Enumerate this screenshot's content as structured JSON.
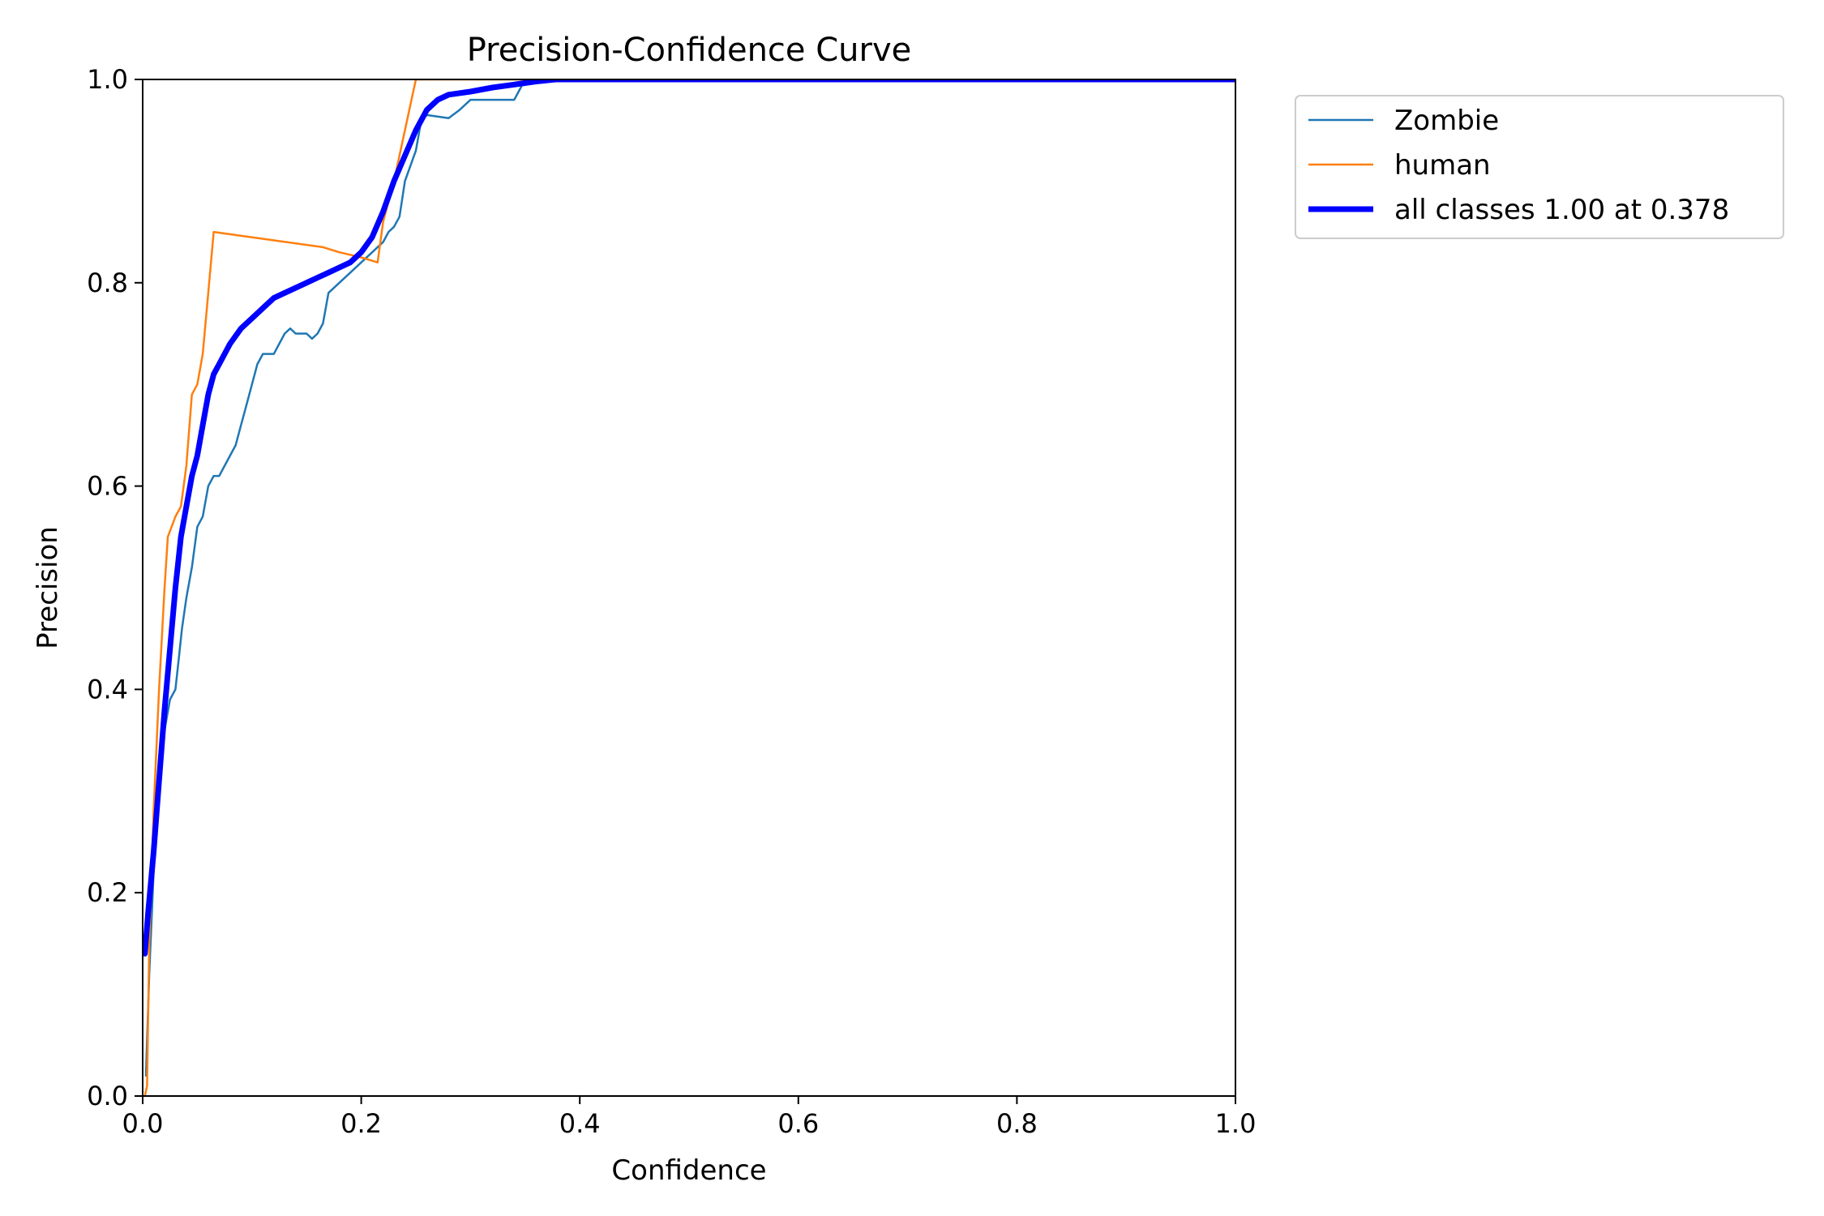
{
  "chart_data": {
    "type": "line",
    "title": "Precision-Confidence Curve",
    "xlabel": "Confidence",
    "ylabel": "Precision",
    "xlim": [
      0,
      1
    ],
    "ylim": [
      0,
      1
    ],
    "xticks": [
      "0.0",
      "0.2",
      "0.4",
      "0.6",
      "0.8",
      "1.0"
    ],
    "yticks": [
      "0.0",
      "0.2",
      "0.4",
      "0.6",
      "0.8",
      "1.0"
    ],
    "grid": false,
    "legend_position": "outside-top-right",
    "series": [
      {
        "name": "Zombie",
        "color": "#1f77b4",
        "line_width": "thin",
        "points": [
          [
            0.003,
            0.02
          ],
          [
            0.006,
            0.12
          ],
          [
            0.01,
            0.22
          ],
          [
            0.015,
            0.3
          ],
          [
            0.02,
            0.36
          ],
          [
            0.025,
            0.39
          ],
          [
            0.03,
            0.4
          ],
          [
            0.033,
            0.43
          ],
          [
            0.036,
            0.46
          ],
          [
            0.04,
            0.49
          ],
          [
            0.045,
            0.52
          ],
          [
            0.05,
            0.56
          ],
          [
            0.055,
            0.57
          ],
          [
            0.06,
            0.6
          ],
          [
            0.065,
            0.61
          ],
          [
            0.07,
            0.61
          ],
          [
            0.075,
            0.62
          ],
          [
            0.08,
            0.63
          ],
          [
            0.085,
            0.64
          ],
          [
            0.09,
            0.66
          ],
          [
            0.095,
            0.68
          ],
          [
            0.1,
            0.7
          ],
          [
            0.105,
            0.72
          ],
          [
            0.11,
            0.73
          ],
          [
            0.115,
            0.73
          ],
          [
            0.12,
            0.73
          ],
          [
            0.125,
            0.74
          ],
          [
            0.13,
            0.75
          ],
          [
            0.135,
            0.755
          ],
          [
            0.14,
            0.75
          ],
          [
            0.15,
            0.75
          ],
          [
            0.155,
            0.745
          ],
          [
            0.16,
            0.75
          ],
          [
            0.165,
            0.76
          ],
          [
            0.17,
            0.79
          ],
          [
            0.18,
            0.8
          ],
          [
            0.19,
            0.81
          ],
          [
            0.2,
            0.82
          ],
          [
            0.21,
            0.83
          ],
          [
            0.22,
            0.84
          ],
          [
            0.225,
            0.85
          ],
          [
            0.23,
            0.855
          ],
          [
            0.235,
            0.865
          ],
          [
            0.24,
            0.9
          ],
          [
            0.25,
            0.93
          ],
          [
            0.255,
            0.96
          ],
          [
            0.26,
            0.965
          ],
          [
            0.28,
            0.962
          ],
          [
            0.29,
            0.97
          ],
          [
            0.3,
            0.98
          ],
          [
            0.32,
            0.98
          ],
          [
            0.34,
            0.98
          ],
          [
            0.345,
            0.99
          ],
          [
            0.35,
            1.0
          ],
          [
            0.4,
            1.0
          ],
          [
            1.0,
            1.0
          ]
        ]
      },
      {
        "name": "human",
        "color": "#ff7f0e",
        "line_width": "thin",
        "points": [
          [
            0.002,
            0.0
          ],
          [
            0.004,
            0.01
          ],
          [
            0.006,
            0.15
          ],
          [
            0.01,
            0.28
          ],
          [
            0.015,
            0.4
          ],
          [
            0.02,
            0.5
          ],
          [
            0.023,
            0.55
          ],
          [
            0.03,
            0.57
          ],
          [
            0.035,
            0.58
          ],
          [
            0.04,
            0.62
          ],
          [
            0.045,
            0.69
          ],
          [
            0.05,
            0.7
          ],
          [
            0.055,
            0.73
          ],
          [
            0.06,
            0.79
          ],
          [
            0.065,
            0.85
          ],
          [
            0.165,
            0.835
          ],
          [
            0.18,
            0.83
          ],
          [
            0.2,
            0.825
          ],
          [
            0.215,
            0.82
          ],
          [
            0.22,
            0.86
          ],
          [
            0.23,
            0.9
          ],
          [
            0.24,
            0.95
          ],
          [
            0.25,
            1.0
          ],
          [
            1.0,
            1.0
          ]
        ]
      },
      {
        "name": "all classes 1.00 at 0.378",
        "color": "#0000ff",
        "line_width": "thick",
        "points": [
          [
            0.002,
            0.14
          ],
          [
            0.005,
            0.18
          ],
          [
            0.01,
            0.24
          ],
          [
            0.015,
            0.31
          ],
          [
            0.02,
            0.38
          ],
          [
            0.025,
            0.44
          ],
          [
            0.03,
            0.5
          ],
          [
            0.035,
            0.55
          ],
          [
            0.04,
            0.58
          ],
          [
            0.045,
            0.61
          ],
          [
            0.05,
            0.63
          ],
          [
            0.055,
            0.66
          ],
          [
            0.06,
            0.69
          ],
          [
            0.065,
            0.71
          ],
          [
            0.07,
            0.72
          ],
          [
            0.08,
            0.74
          ],
          [
            0.09,
            0.755
          ],
          [
            0.1,
            0.765
          ],
          [
            0.11,
            0.775
          ],
          [
            0.12,
            0.785
          ],
          [
            0.13,
            0.79
          ],
          [
            0.14,
            0.795
          ],
          [
            0.15,
            0.8
          ],
          [
            0.16,
            0.805
          ],
          [
            0.17,
            0.81
          ],
          [
            0.18,
            0.815
          ],
          [
            0.19,
            0.82
          ],
          [
            0.2,
            0.83
          ],
          [
            0.21,
            0.845
          ],
          [
            0.22,
            0.87
          ],
          [
            0.23,
            0.9
          ],
          [
            0.24,
            0.925
          ],
          [
            0.25,
            0.95
          ],
          [
            0.26,
            0.97
          ],
          [
            0.27,
            0.98
          ],
          [
            0.28,
            0.985
          ],
          [
            0.3,
            0.988
          ],
          [
            0.32,
            0.992
          ],
          [
            0.34,
            0.995
          ],
          [
            0.36,
            0.998
          ],
          [
            0.378,
            1.0
          ],
          [
            0.4,
            1.0
          ],
          [
            1.0,
            1.0
          ]
        ]
      }
    ]
  }
}
